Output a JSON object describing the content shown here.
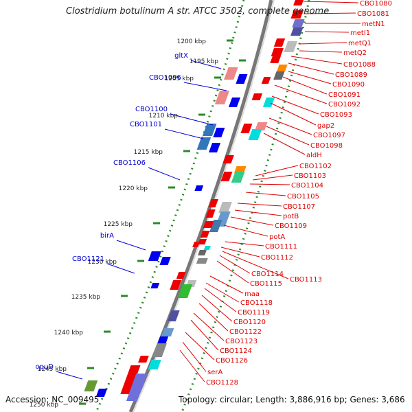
{
  "title": "Clostridium botulinum A str. ATCC 3502, complete genome",
  "accession_text": "Accession: NC_009495",
  "summary_text": "Topology: circular; Length: 3,886,916 bp; Genes: 3,686",
  "ticks": [
    "1195 kbp",
    "1200 kbp",
    "1205 kbp",
    "1210 kbp",
    "1215 kbp",
    "1220 kbp",
    "1225 kbp",
    "1230 kbp",
    "1235 kbp",
    "1240 kbp",
    "1245 kbp",
    "1250 kbp"
  ],
  "reverse_labels": [
    "gltX",
    "CBO1096",
    "CBO1100",
    "CBO1101",
    "CBO1106",
    "birA",
    "CBO1121",
    "opuD"
  ],
  "forward_labels": [
    "CBO1080",
    "CBO1081",
    "metN1",
    "metI1",
    "metQ1",
    "metQ2",
    "CBO1088",
    "CBO1089",
    "CBO1090",
    "CBO1091",
    "CBO1092",
    "CBO1093",
    "gap2",
    "CBO1097",
    "CBO1098",
    "aldH",
    "CBO1102",
    "CBO1103",
    "CBO1104",
    "CBO1105",
    "CBO1107",
    "potB",
    "CBO1109",
    "potA",
    "CBO1111",
    "CBO1112",
    "CBO1113",
    "CBO1114",
    "CBO1115",
    "maa",
    "CBO1118",
    "CBO1119",
    "CBO1120",
    "CBO1122",
    "CBO1123",
    "CBO1124",
    "CBO1126",
    "serA",
    "CBO1128"
  ],
  "colors": {
    "forward_gene": "#ee0000",
    "reverse_gene": "#0000ee",
    "backbone": "#888888",
    "gc_skew": "#228b22",
    "label_forward": "#dd0000",
    "label_reverse": "#0000cc"
  }
}
